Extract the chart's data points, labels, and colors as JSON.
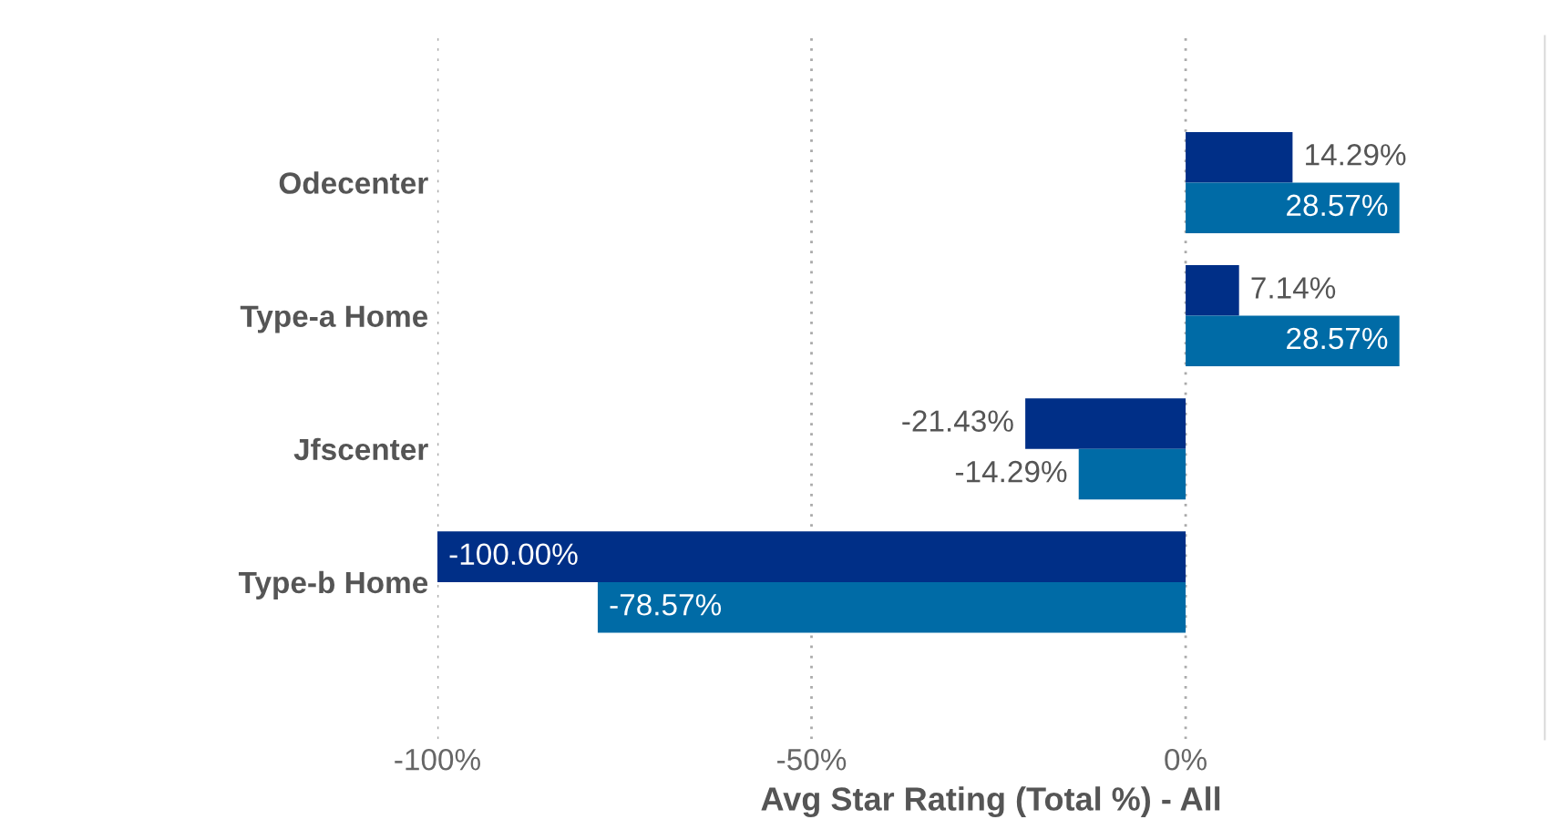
{
  "chart_data": {
    "type": "bar",
    "orientation": "horizontal",
    "xlabel": "Avg Star Rating (Total %) - All",
    "categories": [
      "Odecenter",
      "Type-a Home",
      "Jfscenter",
      "Type-b Home"
    ],
    "series": [
      {
        "color": "#002f87",
        "values": [
          14.29,
          7.14,
          -21.43,
          -100.0
        ],
        "value_labels": [
          "14.29%",
          "7.14%",
          "-21.43%",
          "-100.00%"
        ]
      },
      {
        "color": "#006ba6",
        "values": [
          28.57,
          28.57,
          -14.29,
          -78.57
        ],
        "value_labels": [
          "28.57%",
          "28.57%",
          "-14.29%",
          "-78.57%"
        ]
      }
    ],
    "xlim": [
      -100,
      48
    ],
    "xticks": [
      {
        "value": -100,
        "label": "-100%"
      },
      {
        "value": -50,
        "label": "-50%"
      },
      {
        "value": 0,
        "label": "0%"
      }
    ],
    "grid": "x",
    "legend": false
  }
}
